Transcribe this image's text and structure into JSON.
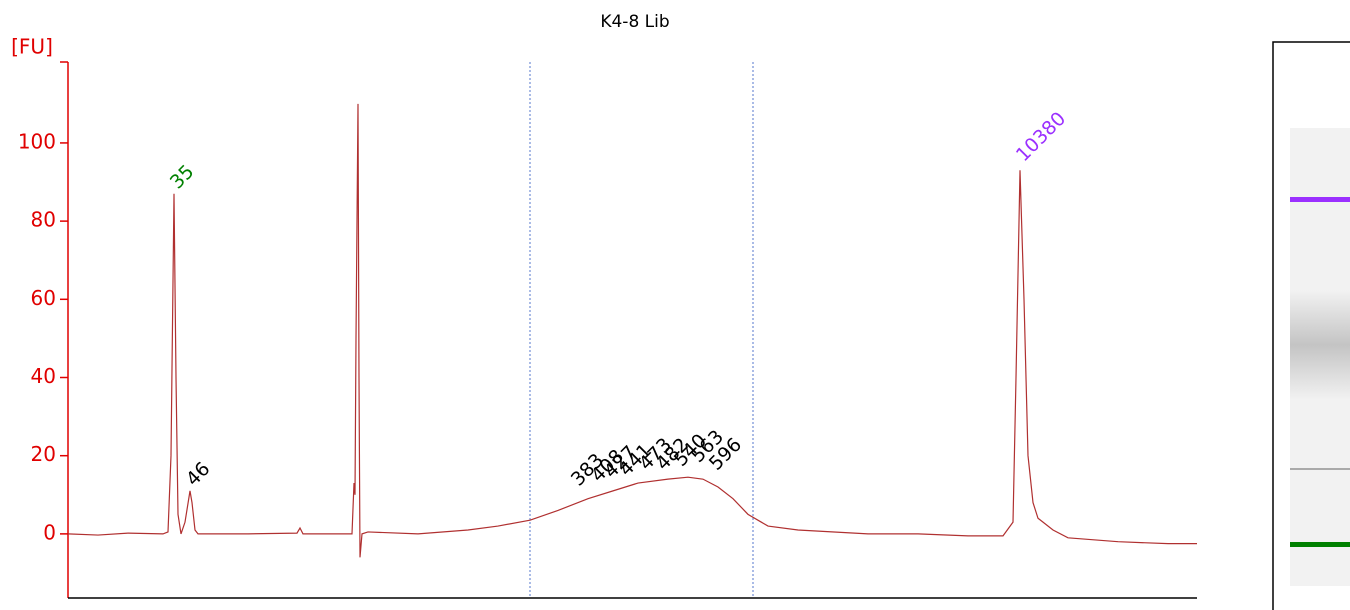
{
  "chart_data": {
    "type": "line",
    "title": "K4-8 Lib",
    "ylabel": "[FU]",
    "color": "#b03030",
    "axis_color": "#e00000",
    "xlim": [
      0,
      1129
    ],
    "ylim": [
      -16.4,
      120.7
    ],
    "yticks": [
      0,
      20,
      40,
      60,
      80,
      100
    ],
    "x": [
      0,
      30,
      60,
      95,
      100,
      103,
      106,
      108,
      110,
      113,
      117,
      122,
      124,
      127,
      130,
      180,
      229,
      232,
      235,
      284,
      286,
      287,
      288,
      290,
      291,
      292,
      294,
      300,
      350,
      400,
      430,
      462,
      490,
      520,
      545,
      570,
      600,
      620,
      635,
      650,
      665,
      680,
      700,
      730,
      800,
      850,
      900,
      935,
      945,
      948,
      952,
      956,
      960,
      965,
      970,
      975,
      985,
      1000,
      1050,
      1100,
      1129
    ],
    "values": [
      0,
      -0.3,
      0.2,
      0,
      0.5,
      20,
      87,
      40,
      5,
      0,
      3,
      11,
      8,
      1,
      0,
      0,
      0.2,
      1.5,
      0,
      0,
      13,
      10,
      50,
      110,
      40,
      -6,
      0,
      0.5,
      0,
      1,
      2,
      3.5,
      6,
      9,
      11,
      13,
      14,
      14.5,
      14,
      12,
      9,
      5,
      2,
      1,
      0,
      0,
      -0.5,
      -0.5,
      3,
      40,
      93,
      60,
      20,
      8,
      4,
      3,
      1,
      -1,
      -2,
      -2.5,
      -2.5
    ],
    "region_lines": [
      462,
      685
    ],
    "annotations": [
      {
        "text": "35",
        "x": 106,
        "y": 89,
        "color": "#008000"
      },
      {
        "text": "46",
        "x": 122,
        "y": 13,
        "color": "#000000"
      },
      {
        "text": "383",
        "x": 507,
        "y": 13,
        "color": "#000000"
      },
      {
        "text": "408",
        "x": 527,
        "y": 14,
        "color": "#000000"
      },
      {
        "text": "427",
        "x": 540,
        "y": 15,
        "color": "#000000"
      },
      {
        "text": "441",
        "x": 555,
        "y": 15.5,
        "color": "#000000"
      },
      {
        "text": "473",
        "x": 575,
        "y": 17,
        "color": "#000000"
      },
      {
        "text": "482",
        "x": 592,
        "y": 17,
        "color": "#000000"
      },
      {
        "text": "540",
        "x": 610,
        "y": 18,
        "color": "#000000"
      },
      {
        "text": "563",
        "x": 627,
        "y": 19,
        "color": "#000000"
      },
      {
        "text": "596",
        "x": 645,
        "y": 17,
        "color": "#000000"
      },
      {
        "text": "10380",
        "x": 952,
        "y": 96,
        "color": "#9b30ff"
      }
    ]
  }
}
